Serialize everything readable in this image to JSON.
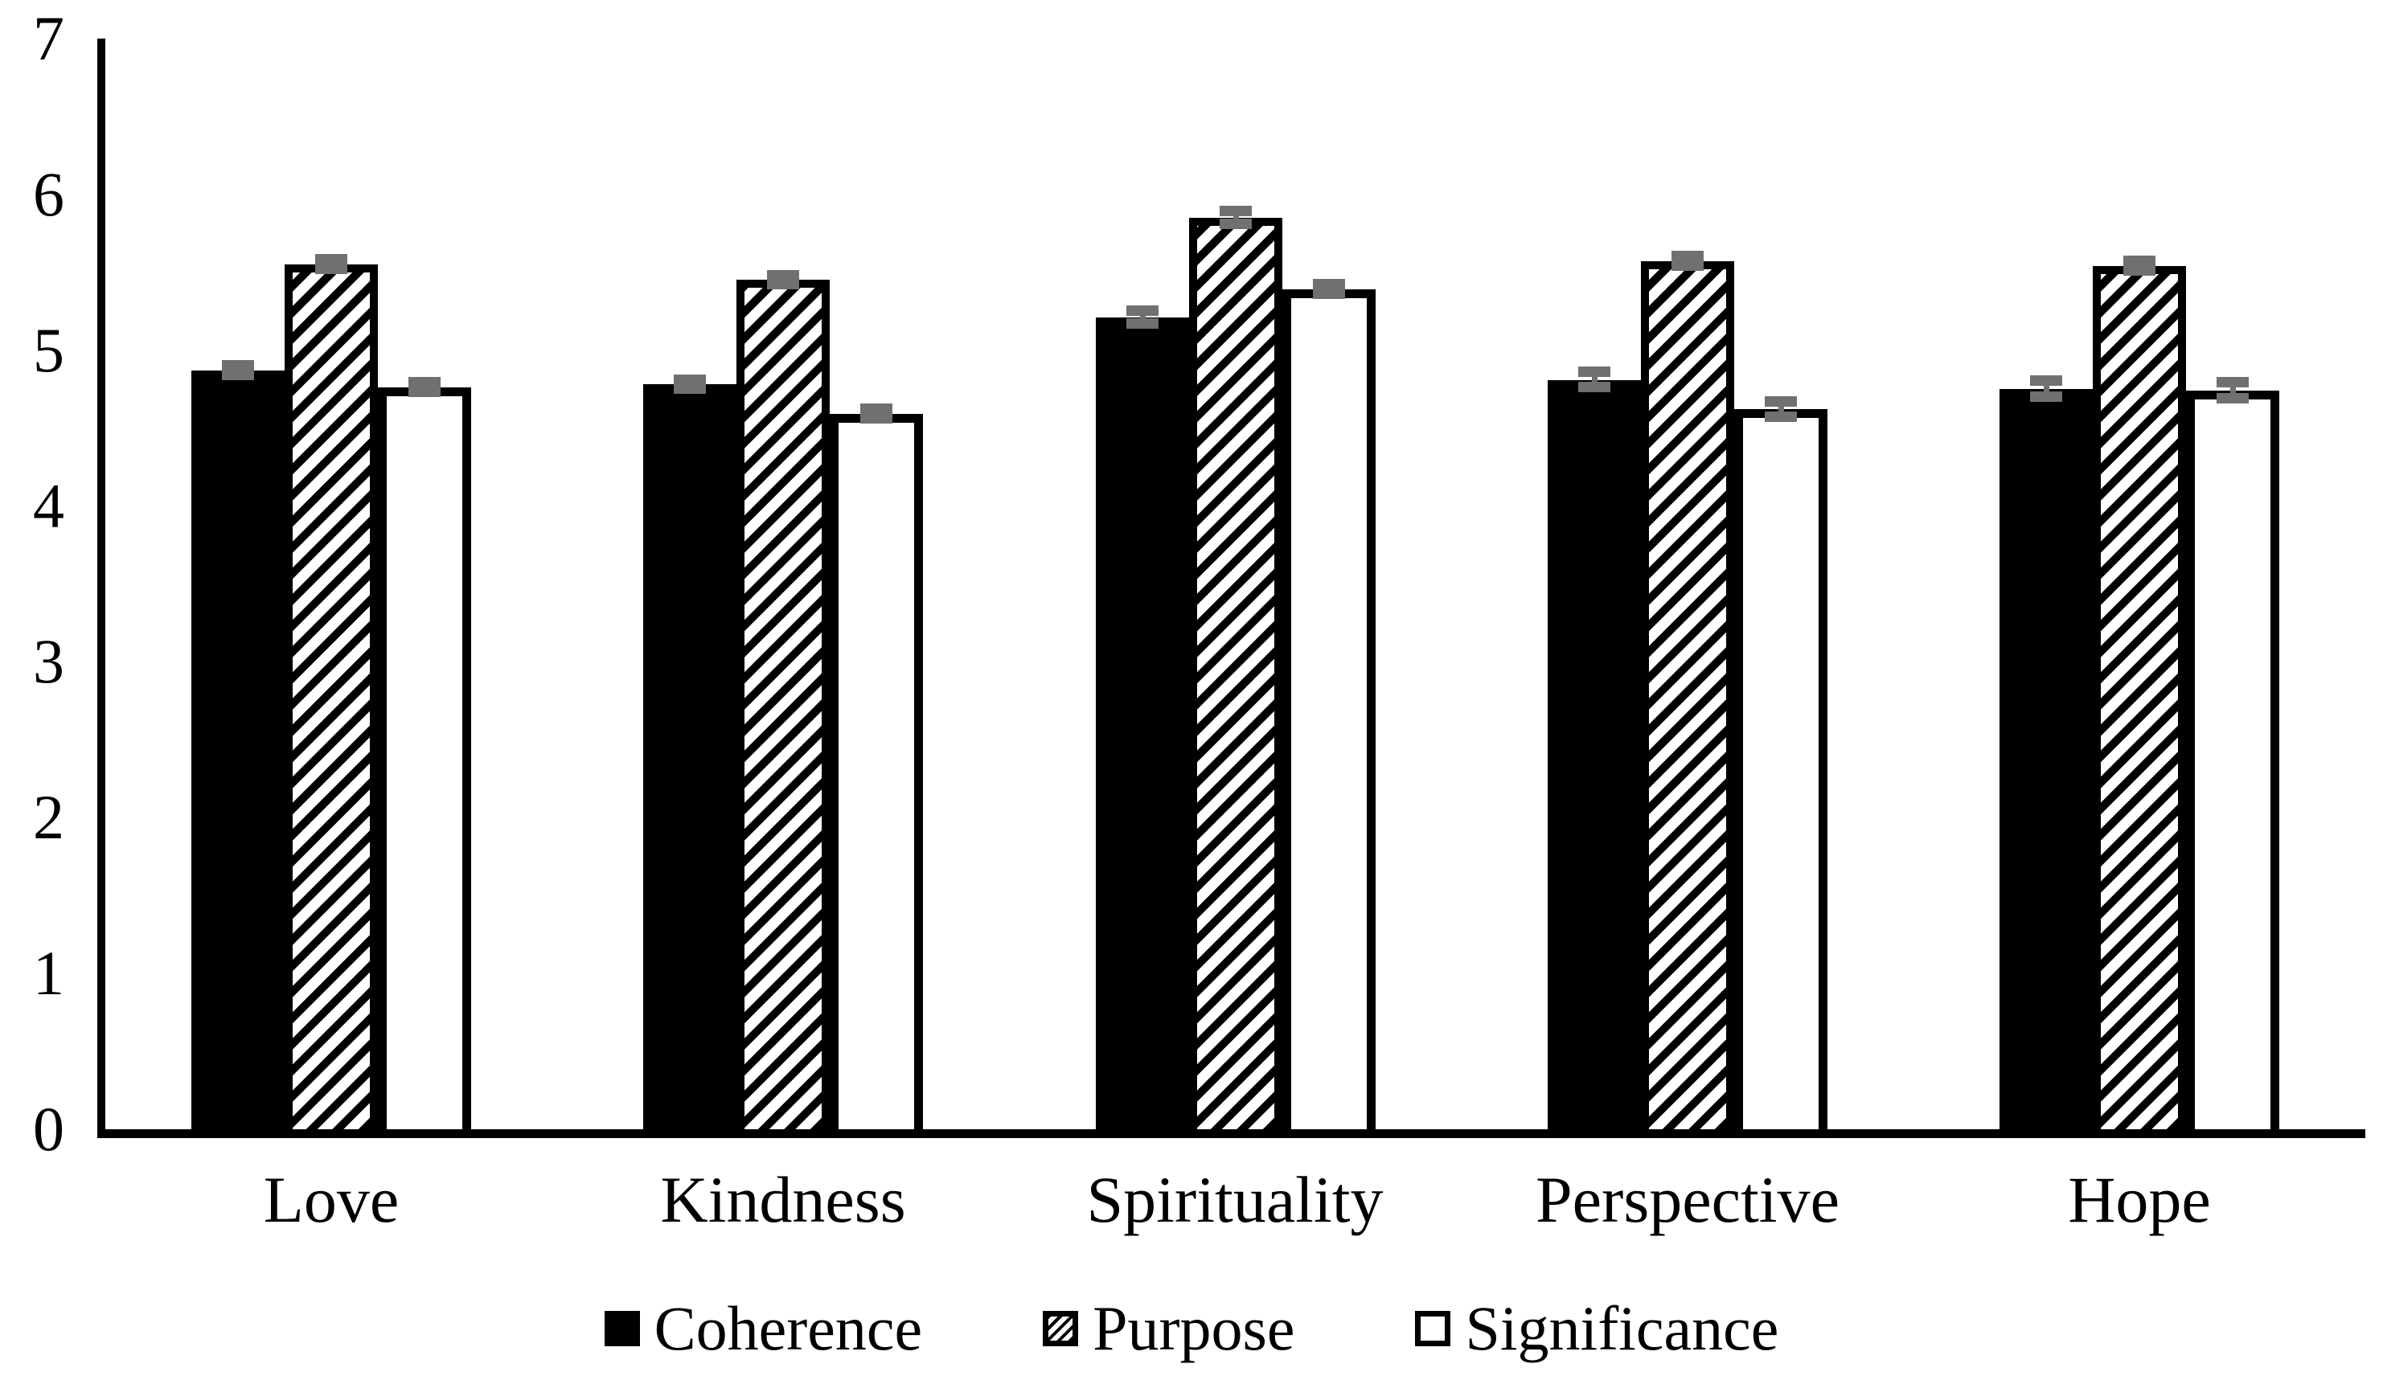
{
  "chart_data": {
    "type": "bar",
    "title": "",
    "xlabel": "",
    "ylabel": "",
    "categories": [
      "Love",
      "Kindness",
      "Spirituality",
      "Perspective",
      "Hope"
    ],
    "series": [
      {
        "name": "Coherence",
        "style": "solid-black",
        "values": [
          4.87,
          4.78,
          5.21,
          4.81,
          4.75
        ],
        "errors": [
          0.03,
          0.03,
          0.04,
          0.05,
          0.05
        ]
      },
      {
        "name": "Purpose",
        "style": "diagonal-hatch",
        "values": [
          5.55,
          5.45,
          5.85,
          5.57,
          5.54
        ],
        "errors": [
          0.03,
          0.03,
          0.04,
          0.03,
          0.03
        ]
      },
      {
        "name": "Significance",
        "style": "white-outline",
        "values": [
          4.76,
          4.59,
          5.39,
          4.62,
          4.74
        ],
        "errors": [
          0.03,
          0.03,
          0.03,
          0.05,
          0.05
        ]
      }
    ],
    "ylim": [
      0,
      7
    ],
    "yticks": [
      "0",
      "1",
      "2",
      "3",
      "4",
      "5",
      "6",
      "7"
    ],
    "grid": false,
    "legend_position": "bottom",
    "colors": {
      "bar_fill": "#000000",
      "bar_outline": "#000000",
      "error_bar": "#707070",
      "background": "#ffffff",
      "text": "#000000"
    }
  }
}
